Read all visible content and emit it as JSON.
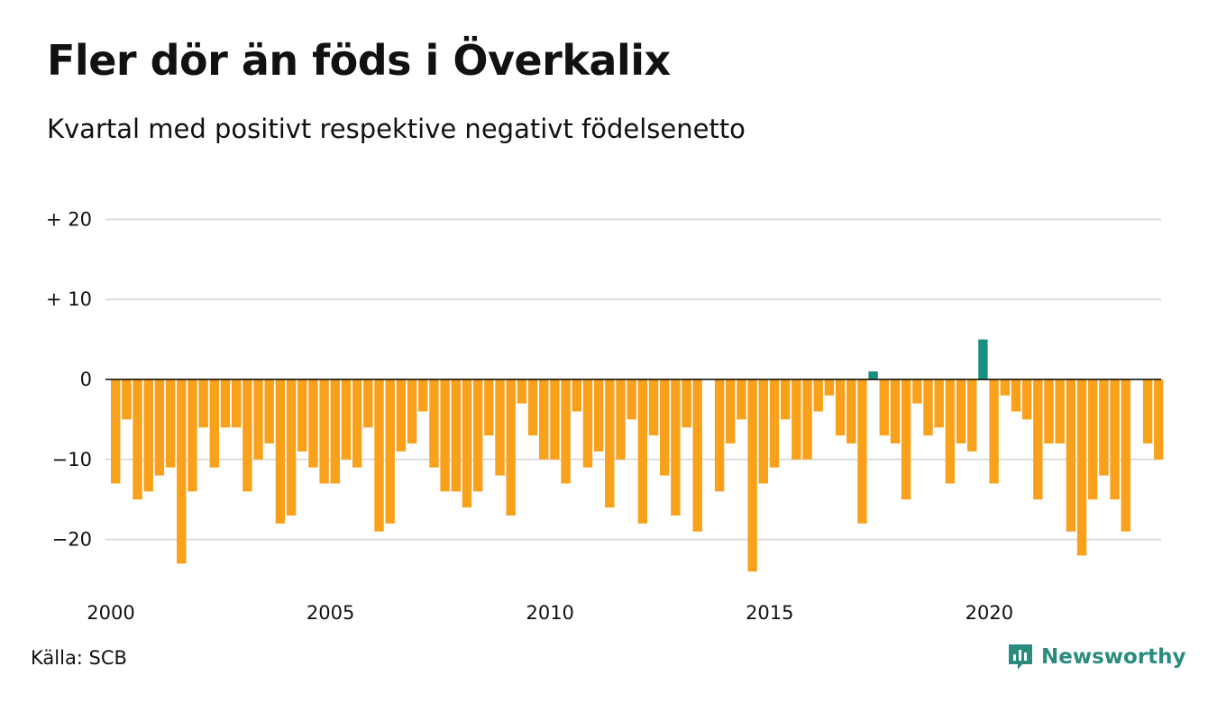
{
  "header": {
    "title": "Fler dör än föds i Överkalix",
    "subtitle": "Kvartal med positivt respektive negativt födelsenetto"
  },
  "footer": {
    "source": "Källa: SCB",
    "brand": "Newsworthy"
  },
  "colors": {
    "negative": "#f9a11b",
    "positive": "#1a8f80",
    "grid": "#dddddd",
    "zero_line": "#000000",
    "brand": "#2a8c7f"
  },
  "icons": {
    "brand_logo": "bar-chart-speech-bubble-icon"
  },
  "chart_data": {
    "type": "bar",
    "title": "Fler dör än föds i Överkalix",
    "subtitle": "Kvartal med positivt respektive negativt födelsenetto",
    "xlabel": "",
    "ylabel": "",
    "ylim": [
      -25,
      23
    ],
    "yticks": [
      20,
      10,
      0,
      -10,
      -20
    ],
    "ytick_labels": [
      "+ 20",
      "+ 10",
      "0",
      "−10",
      "−20"
    ],
    "xticks": [
      2000,
      2005,
      2010,
      2015,
      2020
    ],
    "xtick_labels": [
      "2000",
      "2005",
      "2010",
      "2015",
      "2020"
    ],
    "grid": true,
    "legend": "none",
    "x_start": "2000 Q1",
    "frequency": "quarterly",
    "values": [
      -13,
      -5,
      -15,
      -14,
      -12,
      -11,
      -23,
      -14,
      -6,
      -11,
      -6,
      -6,
      -14,
      -10,
      -8,
      -18,
      -17,
      -9,
      -11,
      -13,
      -13,
      -10,
      -11,
      -6,
      -19,
      -18,
      -9,
      -8,
      -4,
      -11,
      -14,
      -14,
      -16,
      -14,
      -7,
      -12,
      -17,
      -3,
      -7,
      -10,
      -10,
      -13,
      -4,
      -11,
      -9,
      -16,
      -10,
      -5,
      -18,
      -7,
      -12,
      -17,
      -6,
      -19,
      0,
      -14,
      -8,
      -5,
      -24,
      -13,
      -11,
      -5,
      -10,
      -10,
      -4,
      -2,
      -7,
      -8,
      -18,
      1,
      -7,
      -8,
      -15,
      -3,
      -7,
      -6,
      -13,
      -8,
      -9,
      5,
      -13,
      -2,
      -4,
      -5,
      -15,
      -8,
      -8,
      -19,
      -22,
      -15,
      -12,
      -15,
      -19,
      0,
      -8,
      -10
    ]
  }
}
